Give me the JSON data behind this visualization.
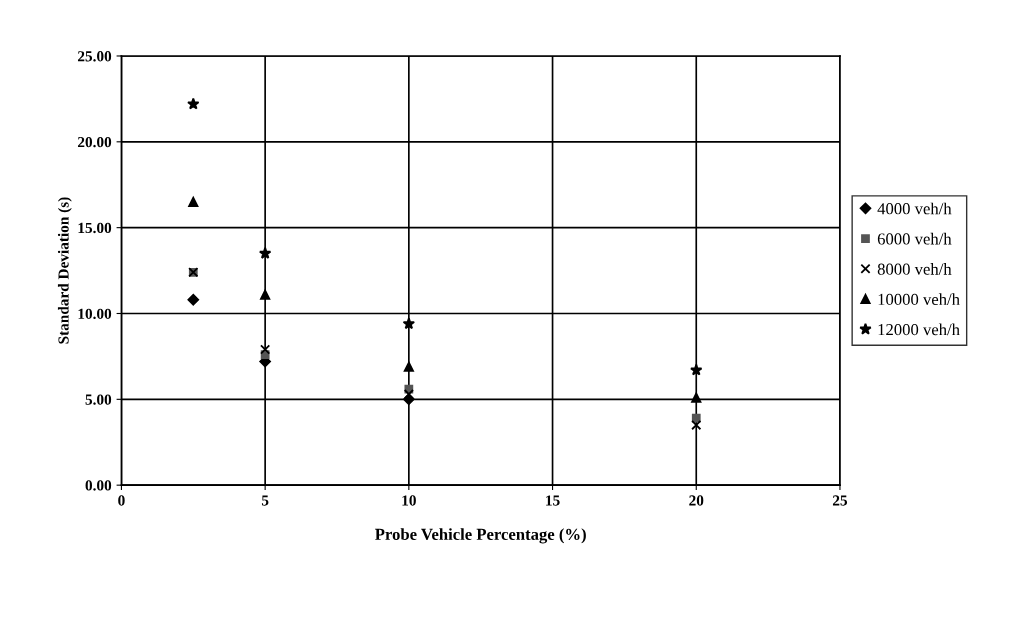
{
  "chart_data": {
    "type": "scatter",
    "xlabel": "Probe Vehicle Percentage (%)",
    "ylabel": "Standard Deviation (s)",
    "x": [
      2.5,
      5,
      10,
      20
    ],
    "series": [
      {
        "name": "4000 veh/h",
        "color": "#000000",
        "marker": "diamond",
        "values": [
          10.8,
          7.2,
          5.0,
          null
        ]
      },
      {
        "name": "6000 veh/h",
        "color": "#555555",
        "marker": "square",
        "values": [
          12.4,
          7.6,
          5.6,
          3.9
        ]
      },
      {
        "name": "8000 veh/h",
        "color": "#000000",
        "marker": "cross",
        "values": [
          12.4,
          7.9,
          5.3,
          3.5
        ]
      },
      {
        "name": "10000 veh/h",
        "color": "#000000",
        "marker": "triangle",
        "values": [
          16.5,
          11.1,
          6.9,
          5.1
        ]
      },
      {
        "name": "12000 veh/h",
        "color": "#000000",
        "marker": "star",
        "values": [
          22.2,
          13.5,
          9.4,
          6.7
        ]
      }
    ],
    "xlim": [
      0,
      25
    ],
    "xticks": [
      0,
      5,
      10,
      15,
      20,
      25
    ],
    "ylim": [
      0,
      25
    ],
    "yticks": [
      {
        "value": 0,
        "label": "0.00"
      },
      {
        "value": 5,
        "label": "5.00"
      },
      {
        "value": 10,
        "label": "10.00"
      },
      {
        "value": 15,
        "label": "15.00"
      },
      {
        "value": 20,
        "label": "20.00"
      },
      {
        "value": 25,
        "label": "25.00"
      }
    ],
    "grid": true,
    "legend": "right"
  }
}
